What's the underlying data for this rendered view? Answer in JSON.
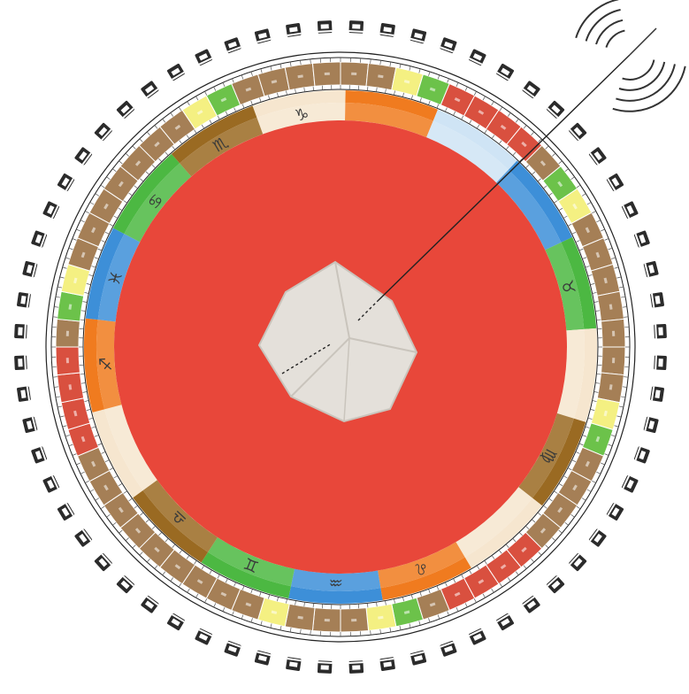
{
  "diagram": {
    "colors": {
      "center_disc": "#e8473a",
      "crystal_fill": "#e4e0da",
      "crystal_shade": "#c9c4bc",
      "ring_brown": "#a57f56",
      "ring_brown_light": "#c9a27a",
      "ring_red": "#d9503f",
      "ring_green": "#6cc24a",
      "ring_green_light": "#b6e08a",
      "ring_yellow": "#f4f082",
      "band_cream": "#f6e6cf",
      "band_orange": "#f07b1f",
      "band_blue": "#3d8fd8",
      "band_blue_light": "#cfe4f5",
      "band_green": "#4cb842",
      "band_brown": "#9a6a22",
      "ink": "#222222",
      "line_light": "#b8b8b8"
    },
    "outer_glyph_count": 64,
    "degree_cell_count": 64,
    "degree_cell_colors": [
      "brown",
      "brown",
      "yellow",
      "green",
      "red",
      "red",
      "red",
      "red",
      "brown",
      "green",
      "yellow",
      "brown",
      "brown",
      "brown",
      "brown",
      "brown",
      "brown",
      "brown",
      "yellow",
      "green",
      "brown",
      "brown",
      "brown",
      "brown",
      "red",
      "red",
      "red",
      "red",
      "brown",
      "green",
      "yellow",
      "brown",
      "brown",
      "brown",
      "yellow",
      "brown",
      "brown",
      "brown",
      "brown",
      "brown",
      "brown",
      "brown",
      "brown",
      "brown",
      "red",
      "red",
      "red",
      "red",
      "brown",
      "green",
      "yellow",
      "brown",
      "brown",
      "brown",
      "brown",
      "brown",
      "brown",
      "brown",
      "yellow",
      "green",
      "brown",
      "brown",
      "brown",
      "brown"
    ],
    "zodiac_band": [
      {
        "color": "band_cream",
        "symbol": "♑"
      },
      {
        "color": "band_orange",
        "symbol": ""
      },
      {
        "color": "band_blue_light",
        "symbol": ""
      },
      {
        "color": "band_blue",
        "symbol": ""
      },
      {
        "color": "band_green",
        "symbol": "♉"
      },
      {
        "color": "band_cream",
        "symbol": ""
      },
      {
        "color": "band_brown",
        "symbol": "♍"
      },
      {
        "color": "band_cream",
        "symbol": ""
      },
      {
        "color": "band_orange",
        "symbol": "♌"
      },
      {
        "color": "band_blue",
        "symbol": "♒"
      },
      {
        "color": "band_green",
        "symbol": "♊"
      },
      {
        "color": "band_brown",
        "symbol": "♎"
      },
      {
        "color": "band_cream",
        "symbol": ""
      },
      {
        "color": "band_orange",
        "symbol": "♐"
      },
      {
        "color": "band_blue",
        "symbol": "♓"
      },
      {
        "color": "band_green",
        "symbol": "♋"
      },
      {
        "color": "band_brown",
        "symbol": "♏"
      }
    ],
    "antenna": {
      "arc_count": 4
    }
  }
}
